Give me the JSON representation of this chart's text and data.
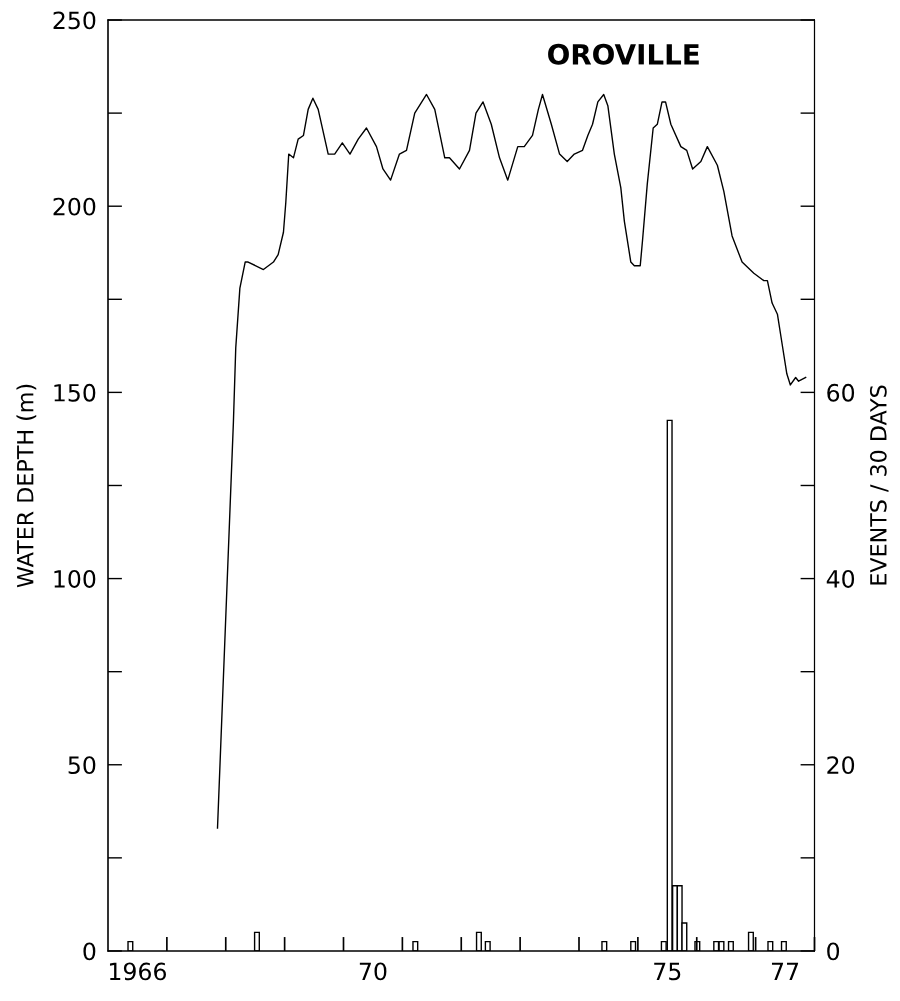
{
  "chart_data": {
    "type": "line",
    "title": "OROVILLE",
    "ylabel": "WATER DEPTH (m)",
    "y2label": "EVENTS / 30 DAYS",
    "xlim": [
      1965.5,
      1977.5
    ],
    "xticks": [
      1966,
      {
        "value": 1966.5,
        "label": null
      },
      {
        "value": 1967.5,
        "label": null
      },
      {
        "value": 1968.5,
        "label": null
      },
      {
        "value": 1969.5,
        "label": null
      },
      {
        "value": 1970,
        "label": "70"
      },
      {
        "value": 1970.5,
        "label": null
      },
      {
        "value": 1971.5,
        "label": null
      },
      {
        "value": 1972.5,
        "label": null
      },
      {
        "value": 1973.5,
        "label": null
      },
      {
        "value": 1974.5,
        "label": null
      },
      {
        "value": 1975,
        "label": "75"
      },
      {
        "value": 1975.5,
        "label": null
      },
      {
        "value": 1976.5,
        "label": null
      },
      {
        "value": 1977,
        "label": "77"
      },
      {
        "value": 1977.5,
        "label": null
      }
    ],
    "ylim": [
      0,
      250
    ],
    "yticks": [
      0,
      {
        "value": 25,
        "label": null
      },
      50,
      {
        "value": 75,
        "label": null
      },
      100,
      {
        "value": 125,
        "label": null
      },
      150,
      {
        "value": 175,
        "label": null
      },
      200,
      {
        "value": 225,
        "label": null
      },
      250
    ],
    "y2lim": [
      0,
      100
    ],
    "y2ticks": [
      0,
      {
        "value": 10,
        "label": null
      },
      20,
      {
        "value": 30,
        "label": null
      },
      40,
      {
        "value": 50,
        "label": null
      },
      60,
      {
        "value": 70,
        "label": null
      },
      {
        "value": 80,
        "label": null
      },
      {
        "value": 90,
        "label": null
      },
      {
        "value": 100,
        "label": null
      }
    ],
    "grid": false,
    "legend": false,
    "series": [
      {
        "color": "#000000",
        "x": [
          1967.36,
          1967.63,
          1967.67,
          1967.74,
          1967.83,
          1967.88,
          1968.14,
          1968.31,
          1968.39,
          1968.48,
          1968.52,
          1968.57,
          1968.65,
          1968.73,
          1968.82,
          1968.9,
          1968.98,
          1969.07,
          1969.24,
          1969.35,
          1969.48,
          1969.61,
          1969.75,
          1969.89,
          1970.06,
          1970.17,
          1970.3,
          1970.45,
          1970.57,
          1970.71,
          1970.91,
          1971.05,
          1971.22,
          1971.3,
          1971.47,
          1971.64,
          1971.75,
          1971.87,
          1972.01,
          1972.15,
          1972.29,
          1972.46,
          1972.57,
          1972.71,
          1972.81,
          1972.88,
          1973.03,
          1973.17,
          1973.3,
          1973.42,
          1973.56,
          1973.65,
          1973.73,
          1973.82,
          1973.92,
          1973.99,
          1974.1,
          1974.21,
          1974.27,
          1974.38,
          1974.44,
          1974.54,
          1974.58,
          1974.66,
          1974.76,
          1974.83,
          1974.91,
          1974.97,
          1975.06,
          1975.23,
          1975.33,
          1975.43,
          1975.57,
          1975.68,
          1975.85,
          1975.96,
          1976.1,
          1976.27,
          1976.47,
          1976.64,
          1976.7,
          1976.78,
          1976.87,
          1976.95,
          1977.03,
          1977.09,
          1977.18,
          1977.23,
          1977.35
        ],
        "values": [
          33,
          142,
          162,
          178,
          185,
          185,
          183,
          185,
          187,
          193,
          201,
          214,
          213,
          218,
          219,
          226,
          229,
          226,
          214,
          214,
          217,
          214,
          218,
          221,
          216,
          210,
          207,
          214,
          215,
          225,
          230,
          226,
          213,
          213,
          210,
          215,
          225,
          228,
          222,
          213,
          207,
          216,
          216,
          219,
          226,
          230,
          222,
          214,
          212,
          214,
          215,
          219,
          222,
          228,
          230,
          227,
          214,
          205,
          196,
          185,
          184,
          184,
          191,
          206,
          221,
          222,
          228,
          228,
          222,
          216,
          215,
          210,
          212,
          216,
          211,
          204,
          192,
          185,
          182,
          180,
          180,
          174,
          171,
          163,
          155,
          152,
          154,
          153,
          154
        ]
      },
      {
        "type": "bar",
        "color": "#000000",
        "axis": "y2",
        "x": [
          1965.88,
          1968.03,
          1970.72,
          1971.8,
          1971.95,
          1973.93,
          1974.42,
          1974.94,
          1975.04,
          1975.13,
          1975.21,
          1975.29,
          1975.51,
          1975.83,
          1975.92,
          1976.08,
          1976.42,
          1976.75,
          1976.98
        ],
        "values": [
          1,
          2,
          1,
          2,
          1,
          1,
          1,
          1,
          57,
          7,
          7,
          3,
          1,
          1,
          1,
          1,
          2,
          1,
          1
        ]
      }
    ]
  }
}
